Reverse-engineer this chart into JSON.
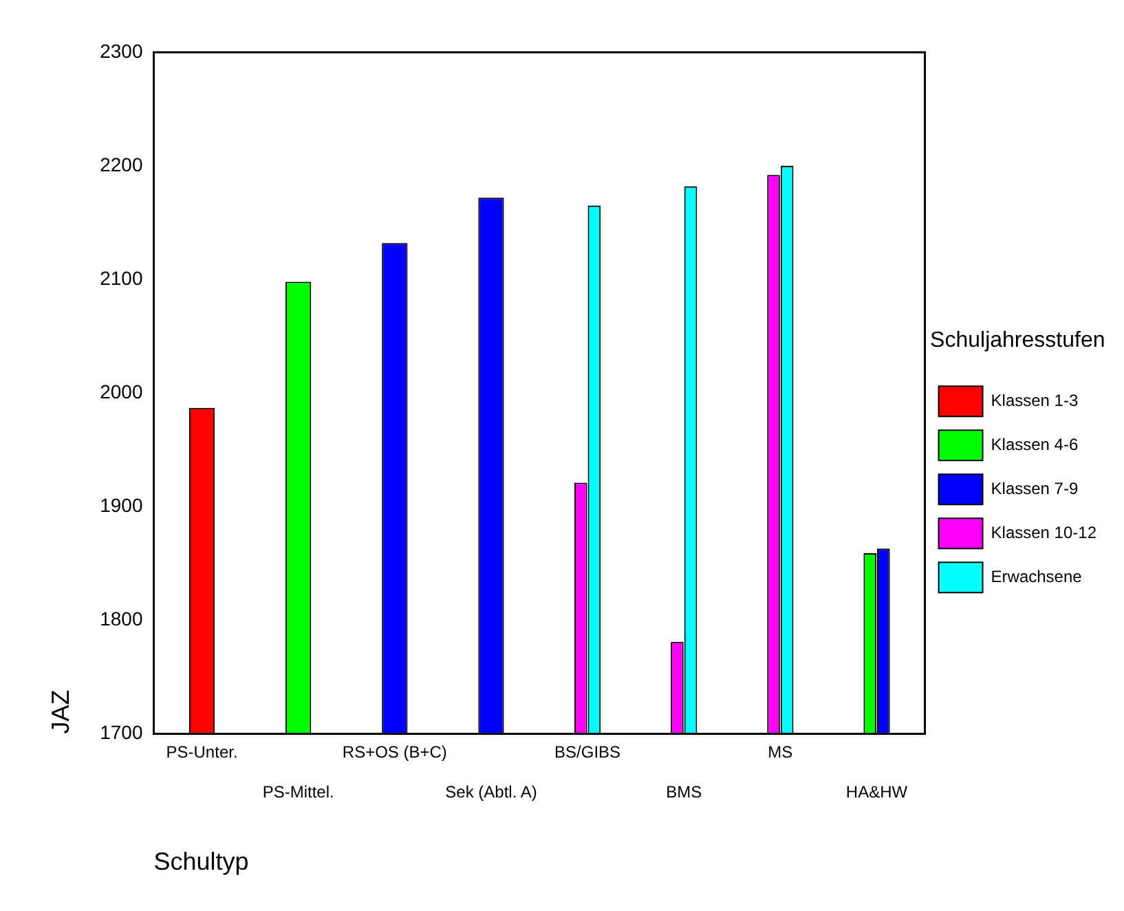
{
  "chart_data": {
    "type": "bar",
    "xlabel": "Schultyp",
    "ylabel": "JAZ",
    "legend_title": "Schuljahresstufen",
    "legend": "right",
    "categories": [
      "PS-Unter.",
      "PS-Mittel.",
      "RS+OS (B+C)",
      "Sek (Abtl. A)",
      "BS/GIBS",
      "BMS",
      "MS",
      "HA&HW"
    ],
    "series": [
      {
        "name": "Klassen 1-3",
        "color": "#ff0000",
        "values": [
          1987,
          null,
          null,
          null,
          null,
          null,
          null,
          null
        ]
      },
      {
        "name": "Klassen 4-6",
        "color": "#00ff00",
        "values": [
          null,
          2098,
          null,
          null,
          null,
          null,
          null,
          1859
        ]
      },
      {
        "name": "Klassen 7-9",
        "color": "#0000ff",
        "values": [
          null,
          null,
          2132,
          2172,
          null,
          null,
          null,
          1863
        ]
      },
      {
        "name": "Klassen 10-12",
        "color": "#ff00ff",
        "values": [
          null,
          null,
          null,
          null,
          1921,
          1781,
          2192,
          null
        ]
      },
      {
        "name": "Erwachsene",
        "color": "#00ffff",
        "values": [
          null,
          null,
          null,
          null,
          2165,
          2182,
          2200,
          null
        ]
      }
    ],
    "ylim": [
      1700,
      2300
    ],
    "yticks": [
      1700,
      1800,
      1900,
      2000,
      2100,
      2200,
      2300
    ],
    "grid": false
  }
}
